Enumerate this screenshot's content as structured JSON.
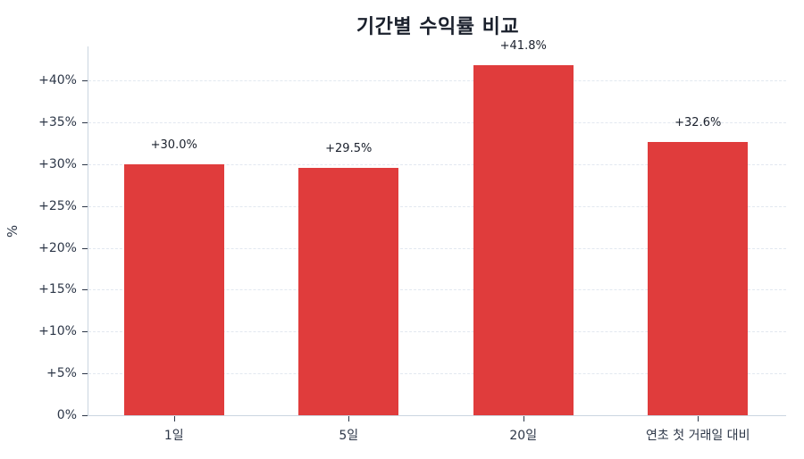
{
  "chart_data": {
    "type": "bar",
    "title": "기간별 수익률 비교",
    "xlabel": "",
    "ylabel": "%",
    "categories": [
      "1일",
      "5일",
      "20일",
      "연초 첫 거래일 대비"
    ],
    "values": [
      30.0,
      29.5,
      41.8,
      32.6
    ],
    "data_labels": [
      "+30.0%",
      "+29.5%",
      "+41.8%",
      "+32.6%"
    ],
    "ylim": [
      0,
      44
    ],
    "yticks": [
      0,
      5,
      10,
      15,
      20,
      25,
      30,
      35,
      40
    ],
    "ytick_labels": [
      "0%",
      "+5%",
      "+10%",
      "+15%",
      "+20%",
      "+25%",
      "+30%",
      "+35%",
      "+40%"
    ],
    "grid": "horizontal dashed",
    "legend": null,
    "bar_color": "#e03c3c"
  }
}
